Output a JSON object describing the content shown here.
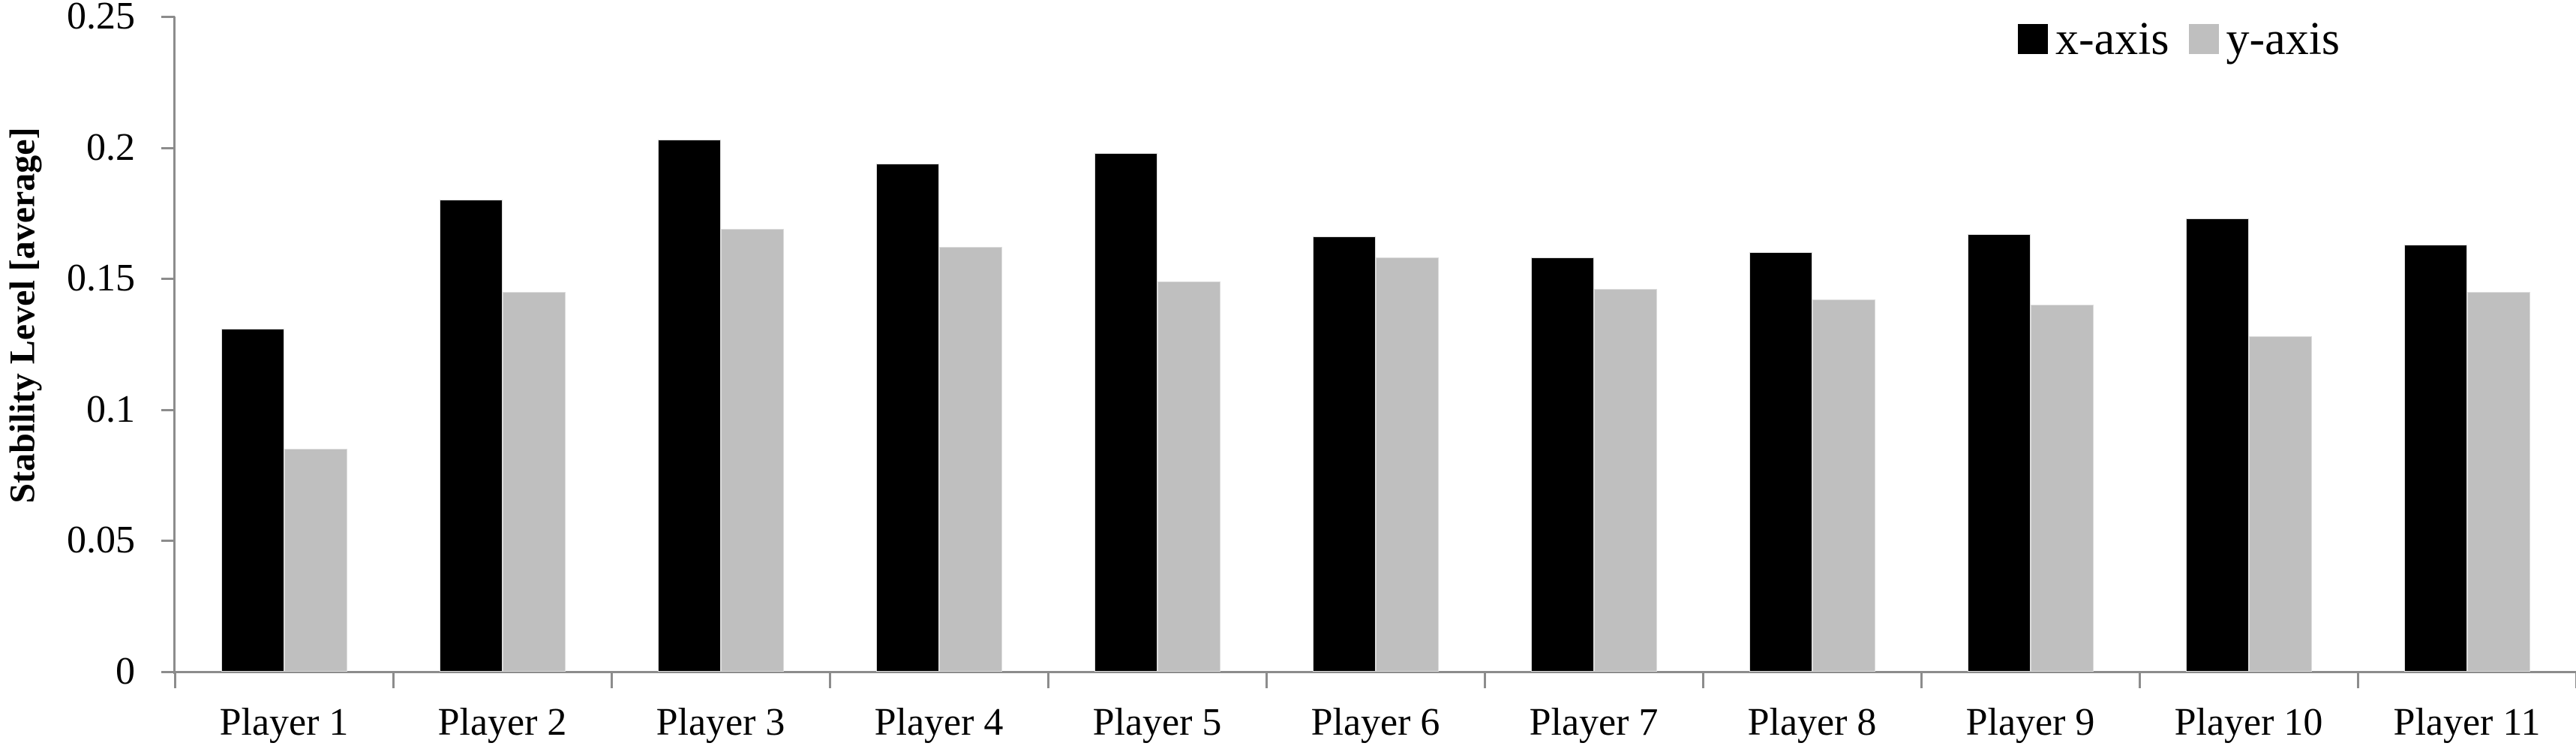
{
  "chart_data": {
    "type": "bar",
    "title": "",
    "categories": [
      "Player 1",
      "Player 2",
      "Player 3",
      "Player 4",
      "Player 5",
      "Player 6",
      "Player 7",
      "Player 8",
      "Player 9",
      "Player 10",
      "Player 11"
    ],
    "series": [
      {
        "name": "x-axis",
        "color": "#000000",
        "values": [
          0.131,
          0.18,
          0.203,
          0.194,
          0.198,
          0.166,
          0.158,
          0.16,
          0.167,
          0.173,
          0.163
        ]
      },
      {
        "name": "y-axis",
        "color": "#bfbfbf",
        "values": [
          0.085,
          0.145,
          0.169,
          0.162,
          0.149,
          0.158,
          0.146,
          0.142,
          0.14,
          0.128,
          0.145
        ]
      }
    ],
    "xlabel": "",
    "ylabel": "Stability Level [average]",
    "ylim": [
      0,
      0.25
    ],
    "y_ticks": [
      0,
      0.05,
      0.1,
      0.15,
      0.2,
      0.25
    ],
    "y_tick_labels": [
      "0",
      "0.05",
      "0.1",
      "0.15",
      "0.2",
      "0.25"
    ],
    "grid": false,
    "legend_position": "top-right",
    "axis_color": "#8c8c8c"
  }
}
